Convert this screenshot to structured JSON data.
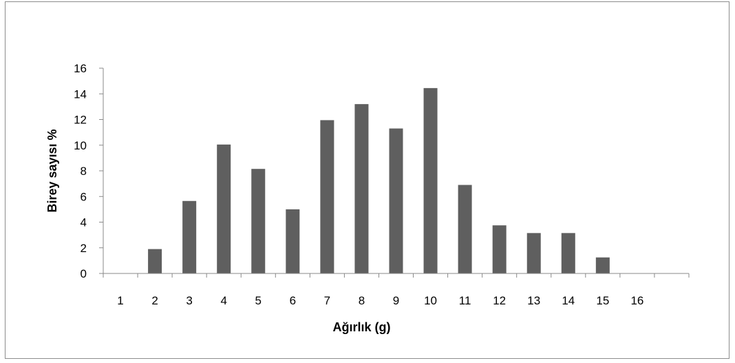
{
  "chart_data": {
    "type": "bar",
    "title": "",
    "xlabel": "Ağırlık (g)",
    "ylabel": "Birey sayısı %",
    "categories": [
      "1",
      "2",
      "3",
      "4",
      "5",
      "6",
      "7",
      "8",
      "9",
      "10",
      "11",
      "12",
      "13",
      "14",
      "15",
      "16"
    ],
    "values": [
      0,
      1.9,
      5.65,
      10.05,
      8.15,
      5.0,
      11.95,
      13.2,
      11.3,
      14.45,
      6.9,
      3.75,
      3.15,
      3.15,
      1.25,
      0
    ],
    "ylim": [
      0,
      16
    ],
    "yticks": [
      0,
      2,
      4,
      6,
      8,
      10,
      12,
      14,
      16
    ],
    "grid": false,
    "legend": "none",
    "bar_color": "#5f5f5f",
    "axis_color": "#888888"
  }
}
